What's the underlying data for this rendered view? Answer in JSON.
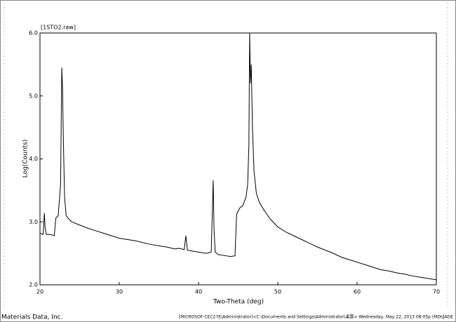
{
  "chart_data": {
    "type": "line",
    "title": "[1STO2.raw]",
    "x_label": "Two-Theta (deg)",
    "y_label": "Log(Counts)",
    "footer_left": "Materials Data, Inc.",
    "footer_right": "[MICROSOF-CEC27E\\Administrator]<C:\\Documents and Settings\\Administrator\\桌面> Wednesday, May 22, 2013 08:05p (MDI/JADE",
    "xlim": [
      20,
      70
    ],
    "ylim": [
      2.0,
      6.0
    ],
    "xticks": [
      20,
      30,
      40,
      50,
      60,
      70
    ],
    "yticks": [
      {
        "value": 2.0,
        "label": "2.0"
      },
      {
        "value": 3.0,
        "label": "3.0"
      },
      {
        "value": 4.0,
        "label": "4.0"
      },
      {
        "value": 5.0,
        "label": "5.0"
      },
      {
        "value": 6.0,
        "label": "6.0"
      }
    ],
    "series": [
      {
        "name": "1STO2",
        "color": "#000000",
        "x": [
          20,
          20.4,
          20.55,
          20.65,
          20.8,
          21.3,
          21.8,
          22.0,
          22.3,
          22.6,
          22.75,
          22.85,
          22.95,
          23.1,
          23.3,
          23.6,
          24,
          25,
          26,
          27,
          28,
          30,
          32,
          34,
          35,
          36,
          37,
          37.5,
          38.2,
          38.4,
          38.6,
          39,
          40,
          41,
          41.6,
          41.85,
          41.95,
          42.1,
          42.5,
          43,
          44,
          44.6,
          44.8,
          45.2,
          45.6,
          46.0,
          46.2,
          46.35,
          46.45,
          46.55,
          46.65,
          46.8,
          47.0,
          47.3,
          47.7,
          48.2,
          49,
          50,
          51,
          52,
          53,
          54,
          55,
          56,
          57,
          58,
          59,
          60,
          61,
          62,
          63,
          64,
          65,
          66,
          67,
          68,
          69,
          70
        ],
        "values": [
          2.82,
          2.8,
          3.14,
          2.9,
          2.8,
          2.8,
          2.78,
          3.06,
          3.1,
          3.6,
          5.45,
          5.1,
          4.3,
          3.4,
          3.1,
          3.05,
          3.0,
          2.95,
          2.9,
          2.86,
          2.82,
          2.74,
          2.7,
          2.64,
          2.62,
          2.6,
          2.57,
          2.58,
          2.56,
          2.78,
          2.55,
          2.54,
          2.52,
          2.5,
          2.52,
          3.66,
          2.9,
          2.52,
          2.48,
          2.47,
          2.45,
          2.46,
          3.12,
          3.22,
          3.26,
          3.4,
          3.6,
          4.2,
          6.0,
          5.2,
          5.5,
          4.5,
          3.8,
          3.45,
          3.3,
          3.2,
          3.05,
          2.92,
          2.84,
          2.78,
          2.72,
          2.66,
          2.6,
          2.55,
          2.5,
          2.44,
          2.4,
          2.36,
          2.32,
          2.28,
          2.24,
          2.22,
          2.19,
          2.17,
          2.14,
          2.12,
          2.1,
          2.08
        ]
      }
    ]
  }
}
